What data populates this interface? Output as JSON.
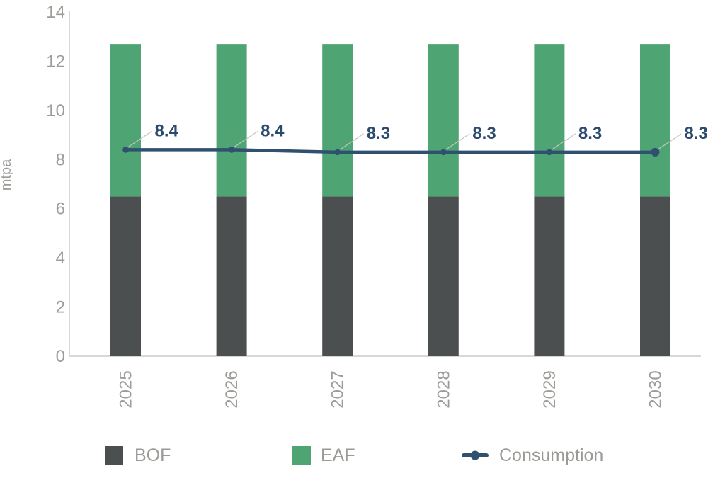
{
  "chart_data": {
    "type": "bar",
    "subtype": "stacked-bar-with-line",
    "categories": [
      "2025",
      "2026",
      "2027",
      "2028",
      "2029",
      "2030"
    ],
    "series": [
      {
        "name": "BOF",
        "type": "bar",
        "color": "#4C4F4F",
        "values": [
          6.5,
          6.5,
          6.5,
          6.5,
          6.5,
          6.5
        ]
      },
      {
        "name": "EAF",
        "type": "bar",
        "color": "#4EA473",
        "values": [
          6.2,
          6.2,
          6.2,
          6.2,
          6.2,
          6.2
        ]
      },
      {
        "name": "Consumption",
        "type": "line",
        "color": "#30506F",
        "values": [
          8.4,
          8.4,
          8.3,
          8.3,
          8.3,
          8.3
        ],
        "point_labels": [
          "8.4",
          "8.4",
          "8.3",
          "8.3",
          "8.3",
          "8.3"
        ]
      }
    ],
    "title": "",
    "xlabel": "",
    "ylabel": "mtpa",
    "ylim": [
      0,
      14
    ],
    "yticks": [
      0,
      2,
      4,
      6,
      8,
      10,
      12,
      14
    ],
    "grid": false,
    "legend_position": "bottom"
  },
  "colors": {
    "background": "#ffffff",
    "axis_line": "#D8D8D5",
    "axis_text": "#9C9C98",
    "legend_text": "#9A9A96",
    "leader_line": "#C4C4C0",
    "data_label": "#2B4A6D"
  }
}
